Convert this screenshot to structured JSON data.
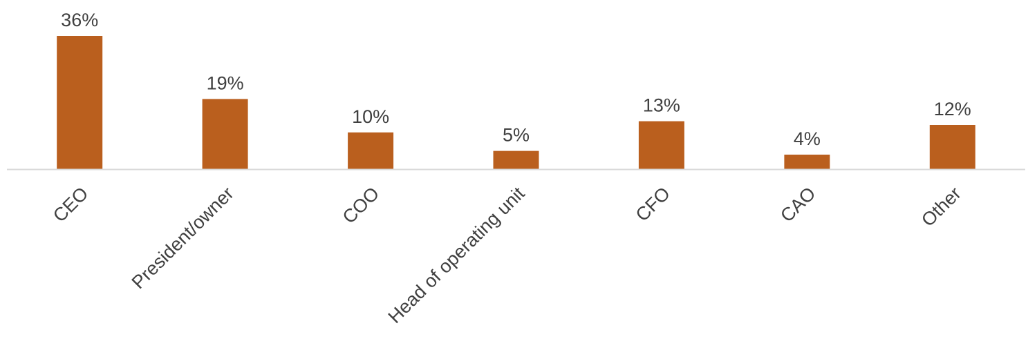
{
  "chart_data": {
    "type": "bar",
    "categories": [
      "CEO",
      "President/owner",
      "COO",
      "Head of operating unit",
      "CFO",
      "CAO",
      "Other"
    ],
    "values": [
      36,
      19,
      10,
      5,
      13,
      4,
      12
    ],
    "value_labels": [
      "36%",
      "19%",
      "10%",
      "5%",
      "13%",
      "4%",
      "12%"
    ],
    "ylim": [
      0,
      36
    ],
    "grid": false,
    "legend": "none",
    "bar_color": "#BA5F1E",
    "axis_color": "#D9D9D9",
    "text_color": "#404040"
  }
}
